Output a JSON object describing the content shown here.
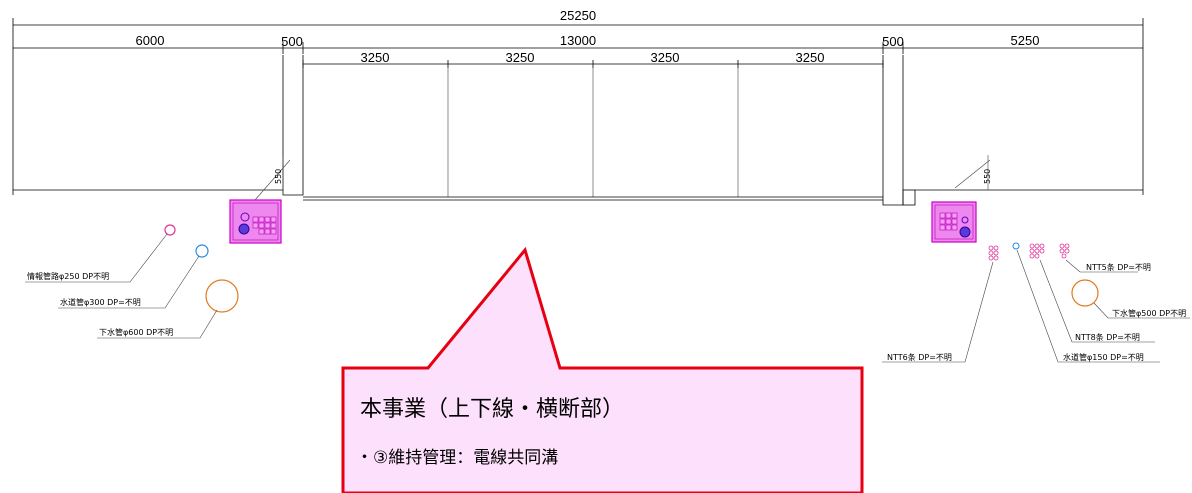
{
  "dimensions": {
    "total": "25250",
    "left_sidewalk": "6000",
    "left_separator": "500",
    "roadway": "13000",
    "lanes": [
      "3250",
      "3250",
      "3250",
      "3250"
    ],
    "right_separator": "500",
    "right_sidewalk": "5250",
    "left_depth": "550",
    "right_depth": "550"
  },
  "left_utilities": [
    {
      "label": "情報管路φ250 DP不明",
      "color": "#e0329a"
    },
    {
      "label": "水道管φ300 DP=不明",
      "color": "#1e8ce6"
    },
    {
      "label": "下水管φ600 DP不明",
      "color": "#e07a20"
    }
  ],
  "right_utilities": [
    {
      "label": "NTT5条 DP=不明",
      "color": "#e0329a"
    },
    {
      "label": "下水管φ500 DP不明",
      "color": "#e07a20"
    },
    {
      "label": "NTT8条 DP=不明",
      "color": "#e0329a"
    },
    {
      "label": "水道管φ150 DP=不明",
      "color": "#1e8ce6"
    },
    {
      "label": "NTT6条 DP=不明",
      "color": "#e0329a"
    }
  ],
  "callout": {
    "title": "本事業（上下線・横断部）",
    "subtitle": "・③維持管理：電線共同溝",
    "border_color": "#e60012",
    "fill_color": "#fde0fb"
  },
  "box_colors": {
    "duct_fill": "#ee88ee",
    "duct_stroke": "#cc00cc"
  }
}
